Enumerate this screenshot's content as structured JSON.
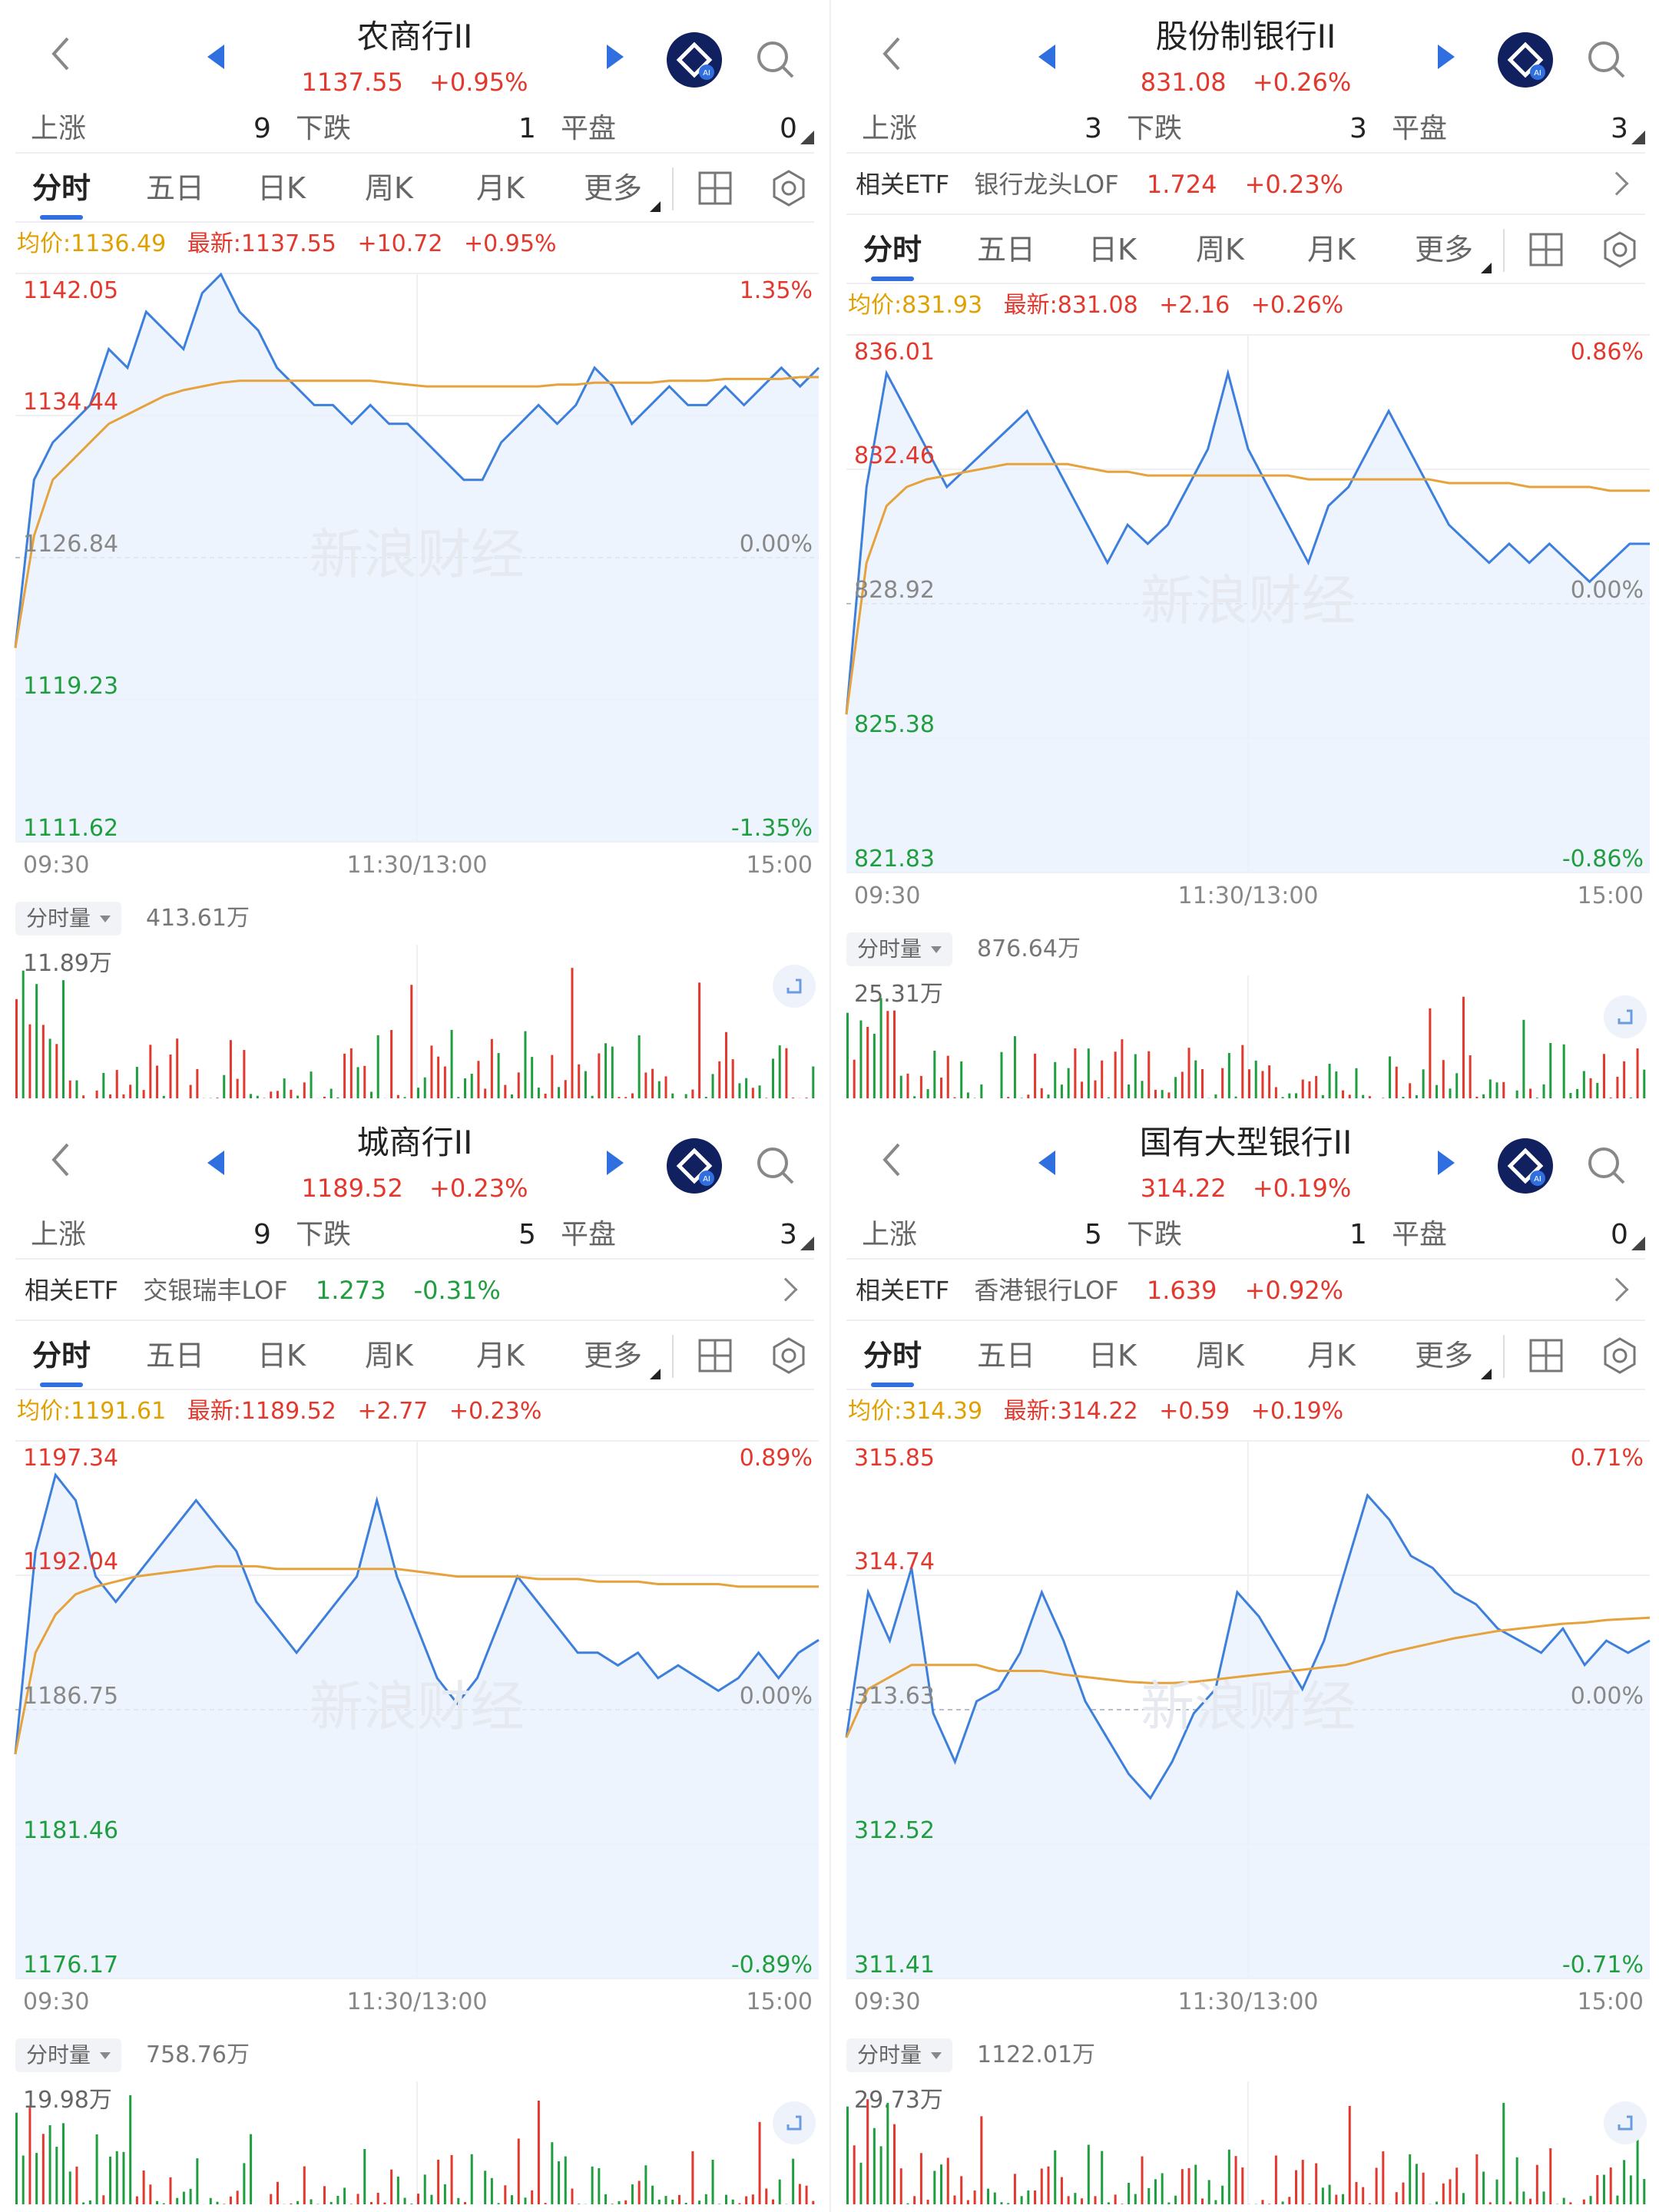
{
  "panels": [
    {
      "id": "p1",
      "title": "农商行II",
      "price": "1137.55",
      "change_pct": "+0.95%",
      "stats": {
        "up_label": "上涨",
        "up": "9",
        "down_label": "下跌",
        "down": "1",
        "flat_label": "平盘",
        "flat": "0"
      },
      "etf": null,
      "tabs": [
        "分时",
        "五日",
        "日K",
        "周K",
        "月K",
        "更多"
      ],
      "info": {
        "avg": "均价:1136.49",
        "last": "最新:1137.55",
        "chg": "+10.72",
        "pct": "+0.95%"
      },
      "y_left": [
        "1142.05",
        "1134.44",
        "1126.84",
        "1119.23",
        "1111.62"
      ],
      "y_right": [
        "1.35%",
        "0.00%",
        "-1.35%"
      ],
      "x_labels": [
        "09:30",
        "11:30/13:00",
        "15:00"
      ],
      "vol_label": "分时量",
      "vol_total": "413.61万",
      "vol_max": "11.89万",
      "chart_data": {
        "type": "line",
        "ylim": [
          1111.62,
          1142.05
        ],
        "base": 1126.84,
        "price": [
          1122,
          1131,
          1133,
          1134,
          1135,
          1138,
          1137,
          1140,
          1139,
          1138,
          1141,
          1142,
          1140,
          1139,
          1137,
          1136,
          1135,
          1135,
          1134,
          1135,
          1134,
          1134,
          1133,
          1132,
          1131,
          1131,
          1133,
          1134,
          1135,
          1134,
          1135,
          1137,
          1136,
          1134,
          1135,
          1136,
          1135,
          1135,
          1136,
          1135,
          1136,
          1137,
          1136,
          1137
        ],
        "avg": [
          1122,
          1128,
          1131,
          1132,
          1133,
          1134,
          1134.5,
          1135,
          1135.5,
          1135.8,
          1136,
          1136.2,
          1136.3,
          1136.3,
          1136.3,
          1136.3,
          1136.3,
          1136.3,
          1136.3,
          1136.3,
          1136.2,
          1136.1,
          1136,
          1136,
          1136,
          1136,
          1136,
          1136,
          1136,
          1136.1,
          1136.1,
          1136.2,
          1136.2,
          1136.2,
          1136.2,
          1136.3,
          1136.3,
          1136.3,
          1136.4,
          1136.4,
          1136.4,
          1136.4,
          1136.5,
          1136.5
        ]
      }
    },
    {
      "id": "p2",
      "title": "股份制银行II",
      "price": "831.08",
      "change_pct": "+0.26%",
      "stats": {
        "up_label": "上涨",
        "up": "3",
        "down_label": "下跌",
        "down": "3",
        "flat_label": "平盘",
        "flat": "3"
      },
      "etf": {
        "label": "相关ETF",
        "name": "银行龙头LOF",
        "price": "1.724",
        "pct": "+0.23%",
        "color": "#e2382d"
      },
      "tabs": [
        "分时",
        "五日",
        "日K",
        "周K",
        "月K",
        "更多"
      ],
      "info": {
        "avg": "均价:831.93",
        "last": "最新:831.08",
        "chg": "+2.16",
        "pct": "+0.26%"
      },
      "y_left": [
        "836.01",
        "832.46",
        "828.92",
        "825.38",
        "821.83"
      ],
      "y_right": [
        "0.86%",
        "0.00%",
        "-0.86%"
      ],
      "x_labels": [
        "09:30",
        "11:30/13:00",
        "15:00"
      ],
      "vol_label": "分时量",
      "vol_total": "876.64万",
      "vol_max": "25.31万",
      "chart_data": {
        "type": "line",
        "ylim": [
          821.83,
          836.01
        ],
        "base": 828.92,
        "price": [
          826,
          832,
          835,
          834,
          833,
          832,
          832.5,
          833,
          833.5,
          834,
          833,
          832,
          831,
          830,
          831,
          830.5,
          831,
          832,
          833,
          835,
          833,
          832,
          831,
          830,
          831.5,
          832,
          833,
          834,
          833,
          832,
          831,
          830.5,
          830,
          830.5,
          830,
          830.5,
          830,
          829.5,
          830,
          830.5,
          830.5
        ],
        "avg": [
          826,
          830,
          831.5,
          832,
          832.2,
          832.3,
          832.4,
          832.5,
          832.6,
          832.6,
          832.6,
          832.6,
          832.5,
          832.4,
          832.4,
          832.3,
          832.3,
          832.3,
          832.3,
          832.3,
          832.3,
          832.3,
          832.3,
          832.2,
          832.2,
          832.2,
          832.2,
          832.2,
          832.2,
          832.2,
          832.1,
          832.1,
          832.1,
          832.1,
          832,
          832,
          832,
          832,
          831.9,
          831.9,
          831.9
        ]
      }
    },
    {
      "id": "p3",
      "title": "城商行II",
      "price": "1189.52",
      "change_pct": "+0.23%",
      "stats": {
        "up_label": "上涨",
        "up": "9",
        "down_label": "下跌",
        "down": "5",
        "flat_label": "平盘",
        "flat": "3"
      },
      "etf": {
        "label": "相关ETF",
        "name": "交银瑞丰LOF",
        "price": "1.273",
        "pct": "-0.31%",
        "color": "#1f9e3f"
      },
      "tabs": [
        "分时",
        "五日",
        "日K",
        "周K",
        "月K",
        "更多"
      ],
      "info": {
        "avg": "均价:1191.61",
        "last": "最新:1189.52",
        "chg": "+2.77",
        "pct": "+0.23%"
      },
      "y_left": [
        "1197.34",
        "1192.04",
        "1186.75",
        "1181.46",
        "1176.17"
      ],
      "y_right": [
        "0.89%",
        "0.00%",
        "-0.89%"
      ],
      "x_labels": [
        "09:30",
        "11:30/13:00",
        "15:00"
      ],
      "vol_label": "分时量",
      "vol_total": "758.76万",
      "vol_max": "19.98万",
      "chart_data": {
        "type": "line",
        "ylim": [
          1176.17,
          1197.34
        ],
        "base": 1186.75,
        "price": [
          1185,
          1193,
          1196,
          1195,
          1192,
          1191,
          1192,
          1193,
          1194,
          1195,
          1194,
          1193,
          1191,
          1190,
          1189,
          1190,
          1191,
          1192,
          1195,
          1192,
          1190,
          1188,
          1187,
          1188,
          1190,
          1192,
          1191,
          1190,
          1189,
          1189,
          1188.5,
          1189,
          1188,
          1188.5,
          1188,
          1187.5,
          1188,
          1189,
          1188,
          1189,
          1189.5
        ],
        "avg": [
          1185,
          1189,
          1190.5,
          1191.3,
          1191.6,
          1191.8,
          1192,
          1192.1,
          1192.2,
          1192.3,
          1192.4,
          1192.4,
          1192.4,
          1192.3,
          1192.3,
          1192.3,
          1192.3,
          1192.3,
          1192.3,
          1192.3,
          1192.2,
          1192.1,
          1192,
          1192,
          1192,
          1192,
          1191.9,
          1191.9,
          1191.9,
          1191.8,
          1191.8,
          1191.8,
          1191.7,
          1191.7,
          1191.7,
          1191.7,
          1191.6,
          1191.6,
          1191.6,
          1191.6,
          1191.6
        ]
      }
    },
    {
      "id": "p4",
      "title": "国有大型银行II",
      "price": "314.22",
      "change_pct": "+0.19%",
      "stats": {
        "up_label": "上涨",
        "up": "5",
        "down_label": "下跌",
        "down": "1",
        "flat_label": "平盘",
        "flat": "0"
      },
      "etf": {
        "label": "相关ETF",
        "name": "香港银行LOF",
        "price": "1.639",
        "pct": "+0.92%",
        "color": "#e2382d"
      },
      "tabs": [
        "分时",
        "五日",
        "日K",
        "周K",
        "月K",
        "更多"
      ],
      "info": {
        "avg": "均价:314.39",
        "last": "最新:314.22",
        "chg": "+0.59",
        "pct": "+0.19%"
      },
      "y_left": [
        "315.85",
        "314.74",
        "313.63",
        "312.52",
        "311.41"
      ],
      "y_right": [
        "0.71%",
        "0.00%",
        "-0.71%"
      ],
      "x_labels": [
        "09:30",
        "11:30/13:00",
        "15:00"
      ],
      "vol_label": "分时量",
      "vol_total": "1122.01万",
      "vol_max": "29.73万",
      "chart_data": {
        "type": "line",
        "ylim": [
          311.41,
          315.85
        ],
        "base": 313.63,
        "price": [
          313.4,
          314.6,
          314.2,
          314.8,
          313.6,
          313.2,
          313.7,
          313.8,
          314.1,
          314.6,
          314.2,
          313.7,
          313.4,
          313.1,
          312.9,
          313.2,
          313.6,
          313.8,
          314.6,
          314.4,
          314.1,
          313.8,
          314.2,
          314.8,
          315.4,
          315.2,
          314.9,
          314.8,
          314.6,
          314.5,
          314.3,
          314.2,
          314.1,
          314.3,
          314.0,
          314.2,
          314.1,
          314.2
        ],
        "avg": [
          313.4,
          313.8,
          313.9,
          314.0,
          314.0,
          314.0,
          314.0,
          313.95,
          313.95,
          313.95,
          313.92,
          313.9,
          313.88,
          313.86,
          313.85,
          313.85,
          313.86,
          313.88,
          313.9,
          313.92,
          313.94,
          313.96,
          313.98,
          314.0,
          314.05,
          314.1,
          314.14,
          314.18,
          314.22,
          314.25,
          314.28,
          314.3,
          314.32,
          314.34,
          314.35,
          314.37,
          314.38,
          314.39
        ]
      }
    }
  ]
}
